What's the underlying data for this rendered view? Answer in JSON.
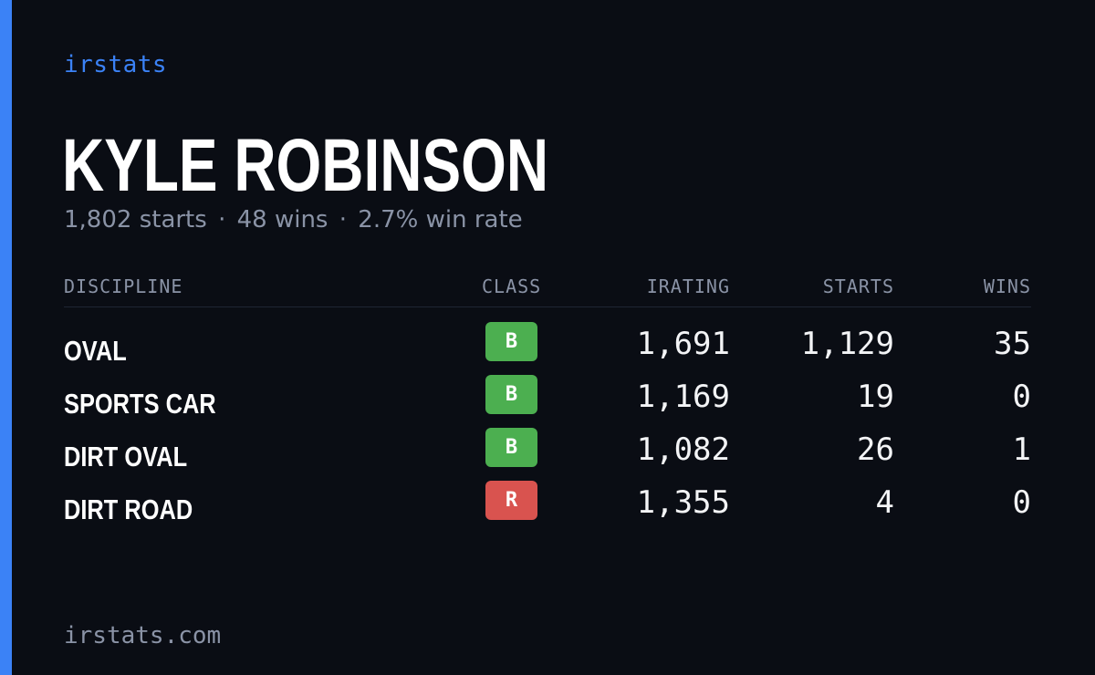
{
  "brand": "irstats",
  "player": {
    "name": "KYLE ROBINSON"
  },
  "summary": {
    "starts": "1,802 starts",
    "wins": "48 wins",
    "win_rate": "2.7% win rate",
    "separator": "·"
  },
  "table": {
    "headers": {
      "discipline": "DISCIPLINE",
      "class": "CLASS",
      "irating": "IRATING",
      "starts": "STARTS",
      "wins": "WINS"
    },
    "rows": [
      {
        "discipline": "OVAL",
        "class": "B",
        "class_color": "#4caf50",
        "irating": "1,691",
        "starts": "1,129",
        "wins": "35"
      },
      {
        "discipline": "SPORTS CAR",
        "class": "B",
        "class_color": "#4caf50",
        "irating": "1,169",
        "starts": "19",
        "wins": "0"
      },
      {
        "discipline": "DIRT OVAL",
        "class": "B",
        "class_color": "#4caf50",
        "irating": "1,082",
        "starts": "26",
        "wins": "1"
      },
      {
        "discipline": "DIRT ROAD",
        "class": "R",
        "class_color": "#d9534f",
        "irating": "1,355",
        "starts": "4",
        "wins": "0"
      }
    ]
  },
  "footer": {
    "url": "irstats.com"
  },
  "colors": {
    "accent": "#3b82f6",
    "background": "#0a0d14"
  }
}
